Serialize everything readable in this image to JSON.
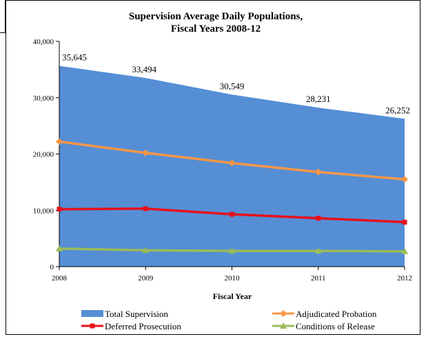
{
  "chart_data": {
    "type": "area",
    "title_line1": "Supervision Average Daily Populations,",
    "title_line2": "Fiscal Years 2008-12",
    "xlabel": "Fiscal Year",
    "ylabel": "",
    "categories": [
      "2008",
      "2009",
      "2010",
      "2011",
      "2012"
    ],
    "ylim": [
      0,
      40000
    ],
    "yticks": [
      0,
      10000,
      20000,
      30000,
      40000
    ],
    "ytick_labels": [
      "0",
      "10,000",
      "20,000",
      "30,000",
      "40,000"
    ],
    "grid": false,
    "legend_position": "bottom",
    "series": [
      {
        "name": "Total Supervision",
        "kind": "area",
        "color": "#558ED5",
        "values": [
          35645,
          33494,
          30549,
          28231,
          26252
        ],
        "labels": [
          "35,645",
          "33,494",
          "30,549",
          "28,231",
          "26,252"
        ]
      },
      {
        "name": "Adjudicated Probation",
        "kind": "line",
        "marker": "diamond",
        "color": "#F79646",
        "values": [
          22200,
          20200,
          18400,
          16800,
          15500
        ]
      },
      {
        "name": "Deferred Prosecution",
        "kind": "line",
        "marker": "square",
        "color": "#E8101A",
        "values": [
          10200,
          10300,
          9300,
          8600,
          7900
        ]
      },
      {
        "name": "Conditions of Release",
        "kind": "line",
        "marker": "triangle",
        "color": "#9BBB59",
        "values": [
          3200,
          2900,
          2800,
          2800,
          2700
        ]
      }
    ]
  }
}
